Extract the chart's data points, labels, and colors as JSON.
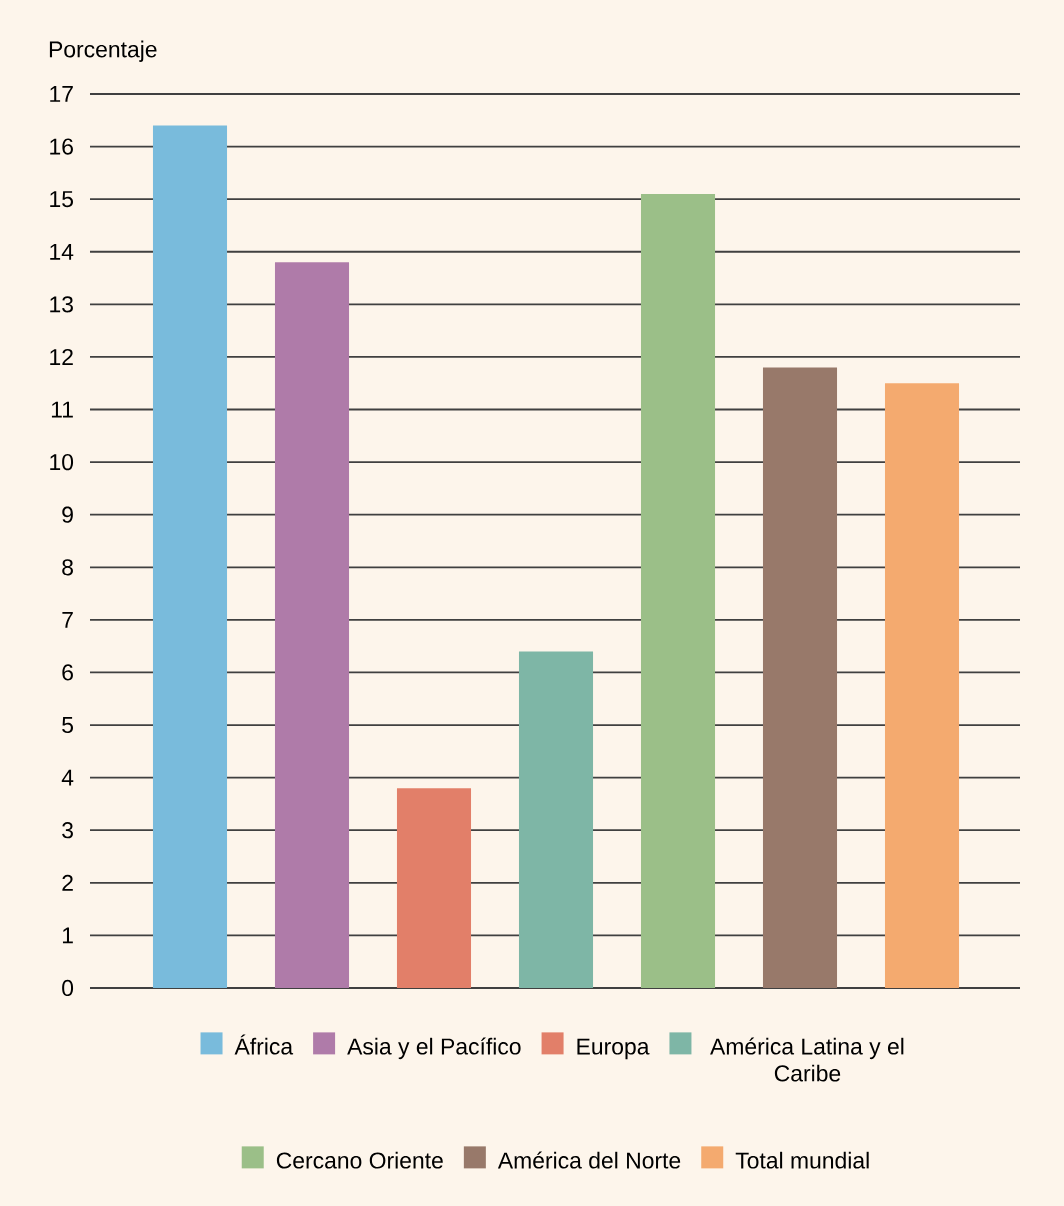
{
  "chart_data": {
    "type": "bar",
    "ylabel": "Porcentaje",
    "categories": [
      null,
      null,
      null,
      null,
      null,
      null,
      null
    ],
    "series": [
      {
        "name": "África",
        "color": "#79bbdc",
        "values": [
          16.4,
          null,
          null,
          null,
          null,
          null,
          null
        ]
      },
      {
        "name": "Asia y el Pacífico",
        "color": "#af7ba9",
        "values": [
          null,
          13.8,
          null,
          null,
          null,
          null,
          null
        ]
      },
      {
        "name": "Europa",
        "color": "#e27f69",
        "values": [
          null,
          null,
          3.8,
          null,
          null,
          null,
          null
        ]
      },
      {
        "name": "América Latina y el Caribe",
        "color": "#7eb6a6",
        "values": [
          null,
          null,
          null,
          6.4,
          null,
          null,
          null
        ]
      },
      {
        "name": "Cercano Oriente",
        "color": "#9bbf88",
        "values": [
          null,
          null,
          null,
          null,
          15.1,
          null,
          null
        ]
      },
      {
        "name": "América del Norte",
        "color": "#98796a",
        "values": [
          null,
          null,
          null,
          null,
          null,
          11.8,
          null
        ]
      },
      {
        "name": "Total mundial",
        "color": "#f4aa6f",
        "values": [
          null,
          null,
          null,
          null,
          null,
          null,
          11.5
        ]
      }
    ],
    "ylim": [
      0,
      17
    ],
    "yticks": [
      0,
      1,
      2,
      3,
      4,
      5,
      6,
      7,
      8,
      9,
      10,
      11,
      12,
      13,
      14,
      15,
      16,
      17
    ],
    "grid": "y",
    "legend": "bottom"
  }
}
